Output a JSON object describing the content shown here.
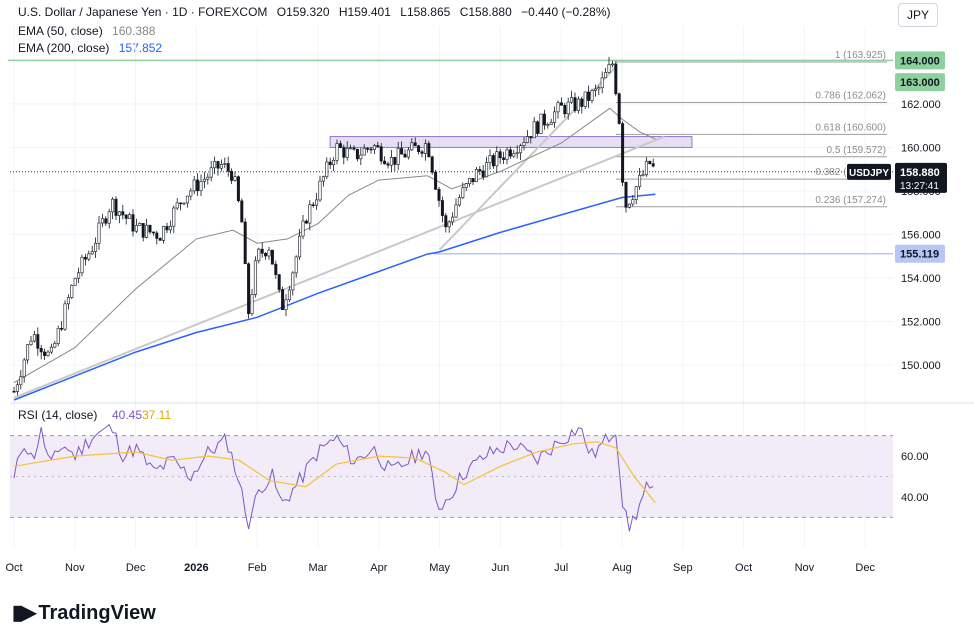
{
  "header": {
    "symbol": "U.S. Dollar / Japanese Yen · 1D · FOREXCOM",
    "open_label": "O",
    "open": "159.320",
    "high_label": "H",
    "high": "159.401",
    "low_label": "L",
    "low": "158.865",
    "close_label": "C",
    "close": "158.880",
    "change": "−0.440 (−0.28%)",
    "ema50_label": "EMA (50, close)",
    "ema50_value": "160.388",
    "ema200_label": "EMA (200, close)",
    "ema200_value": "157.852"
  },
  "currency_button": "JPY",
  "price_badge": {
    "symbol": "USDJPY",
    "price": "158.880",
    "countdown": "13:27:41"
  },
  "level_badges": [
    "164.000",
    "163.000",
    "155.119"
  ],
  "logo_text": "TradingView",
  "colors": {
    "up": "#131722",
    "down": "#131722",
    "ema200": "#2962ff",
    "ema50": "#888888",
    "rsi": "#7e57c2",
    "rsi_ma": "#f5c23a",
    "zone": "#d1c4e9",
    "level_green": "#8fd19e",
    "level_blue": "#b7c6f5"
  },
  "chart_data": [
    {
      "type": "candlestick",
      "x_ticks": [
        "Oct",
        "Nov",
        "Dec",
        "2026",
        "Feb",
        "Mar",
        "Apr",
        "May",
        "Jun",
        "Jul",
        "Aug",
        "Sep",
        "Oct",
        "Nov",
        "Dec"
      ],
      "y_ticks": [
        150.0,
        152.0,
        154.0,
        156.0,
        158.0,
        160.0,
        162.0
      ],
      "ylim": [
        148.4,
        164.2
      ],
      "last_price": 158.88,
      "key_points": [
        {
          "m": 0.0,
          "p": 148.8
        },
        {
          "m": 0.3,
          "p": 151.5
        },
        {
          "m": 0.6,
          "p": 150.3
        },
        {
          "m": 1.0,
          "p": 154.0
        },
        {
          "m": 1.3,
          "p": 155.5
        },
        {
          "m": 1.6,
          "p": 157.5
        },
        {
          "m": 2.0,
          "p": 156.3
        },
        {
          "m": 2.4,
          "p": 156.0
        },
        {
          "m": 2.8,
          "p": 157.8
        },
        {
          "m": 3.1,
          "p": 158.5
        },
        {
          "m": 3.4,
          "p": 159.2
        },
        {
          "m": 3.6,
          "p": 158.8
        },
        {
          "m": 3.75,
          "p": 156.5
        },
        {
          "m": 3.85,
          "p": 152.3
        },
        {
          "m": 4.0,
          "p": 155.0
        },
        {
          "m": 4.2,
          "p": 155.5
        },
        {
          "m": 4.4,
          "p": 152.6
        },
        {
          "m": 4.6,
          "p": 154.5
        },
        {
          "m": 4.8,
          "p": 156.8
        },
        {
          "m": 5.0,
          "p": 158.0
        },
        {
          "m": 5.3,
          "p": 160.0
        },
        {
          "m": 5.6,
          "p": 159.6
        },
        {
          "m": 5.9,
          "p": 160.1
        },
        {
          "m": 6.2,
          "p": 159.4
        },
        {
          "m": 6.5,
          "p": 159.8
        },
        {
          "m": 6.8,
          "p": 160.2
        },
        {
          "m": 7.0,
          "p": 157.5
        },
        {
          "m": 7.1,
          "p": 156.2
        },
        {
          "m": 7.3,
          "p": 157.6
        },
        {
          "m": 7.6,
          "p": 158.8
        },
        {
          "m": 8.0,
          "p": 159.6
        },
        {
          "m": 8.3,
          "p": 160.2
        },
        {
          "m": 8.6,
          "p": 161.0
        },
        {
          "m": 9.0,
          "p": 161.8
        },
        {
          "m": 9.3,
          "p": 162.0
        },
        {
          "m": 9.6,
          "p": 162.6
        },
        {
          "m": 9.75,
          "p": 163.4
        },
        {
          "m": 9.85,
          "p": 163.9
        },
        {
          "m": 9.95,
          "p": 161.5
        },
        {
          "m": 10.0,
          "p": 159.0
        },
        {
          "m": 10.05,
          "p": 157.3
        },
        {
          "m": 10.15,
          "p": 157.8
        },
        {
          "m": 10.3,
          "p": 158.5
        },
        {
          "m": 10.45,
          "p": 159.3
        },
        {
          "m": 10.55,
          "p": 158.88
        }
      ],
      "ema200_points": [
        {
          "m": 0.0,
          "p": 148.4
        },
        {
          "m": 1.0,
          "p": 149.5
        },
        {
          "m": 2.0,
          "p": 150.6
        },
        {
          "m": 3.0,
          "p": 151.5
        },
        {
          "m": 4.0,
          "p": 152.2
        },
        {
          "m": 5.0,
          "p": 153.3
        },
        {
          "m": 6.0,
          "p": 154.3
        },
        {
          "m": 6.8,
          "p": 155.1
        },
        {
          "m": 7.0,
          "p": 155.2
        },
        {
          "m": 8.0,
          "p": 156.1
        },
        {
          "m": 9.0,
          "p": 156.9
        },
        {
          "m": 10.0,
          "p": 157.7
        },
        {
          "m": 10.55,
          "p": 157.852
        }
      ],
      "ema50_points": [
        {
          "m": 0.0,
          "p": 149.2
        },
        {
          "m": 1.0,
          "p": 150.8
        },
        {
          "m": 2.0,
          "p": 153.5
        },
        {
          "m": 3.0,
          "p": 155.8
        },
        {
          "m": 3.6,
          "p": 156.2
        },
        {
          "m": 4.0,
          "p": 155.6
        },
        {
          "m": 4.5,
          "p": 155.8
        },
        {
          "m": 5.0,
          "p": 156.5
        },
        {
          "m": 5.5,
          "p": 157.8
        },
        {
          "m": 6.0,
          "p": 158.5
        },
        {
          "m": 6.8,
          "p": 158.7
        },
        {
          "m": 7.2,
          "p": 158.1
        },
        {
          "m": 8.0,
          "p": 158.9
        },
        {
          "m": 9.0,
          "p": 160.2
        },
        {
          "m": 9.8,
          "p": 161.8
        },
        {
          "m": 10.0,
          "p": 161.3
        },
        {
          "m": 10.3,
          "p": 160.7
        },
        {
          "m": 10.55,
          "p": 160.388
        }
      ],
      "trendlines": [
        {
          "from": {
            "m": 0.0,
            "p": 148.5
          },
          "to": {
            "m": 10.7,
            "p": 160.5
          }
        },
        {
          "from": {
            "m": 7.0,
            "p": 155.3
          },
          "to": {
            "m": 9.9,
            "p": 163.7
          }
        }
      ],
      "resistance_zone": {
        "from_m": 5.2,
        "to_m": 11.15,
        "p_low": 160.0,
        "p_high": 160.5
      },
      "horizontal_levels": [
        {
          "price": 164.0,
          "from_m": -0.1,
          "style": "green"
        },
        {
          "price": 155.119,
          "from_m": 6.9,
          "style": "blue"
        }
      ],
      "fibonacci": {
        "start_m": 9.9,
        "levels": [
          {
            "label": "1 (163.925)",
            "price": 163.925
          },
          {
            "label": "0.786 (162.062)",
            "price": 162.062
          },
          {
            "label": "0.618 (160.600)",
            "price": 160.6
          },
          {
            "label": "0.5 (159.572)",
            "price": 159.572
          },
          {
            "label": "0.382 (158.544)",
            "price": 158.544
          },
          {
            "label": "0.236 (157.274)",
            "price": 157.274
          }
        ]
      }
    },
    {
      "type": "line",
      "title": "RSI (14, close)",
      "series": [
        {
          "name": "RSI",
          "value": 40.45
        },
        {
          "name": "RSI-based MA",
          "value": 37.11
        }
      ],
      "y_ticks": [
        40.0,
        60.0
      ],
      "ylim": [
        15,
        85
      ],
      "bands": [
        30,
        50,
        70
      ],
      "rsi_points": [
        {
          "m": 0.0,
          "v": 48
        },
        {
          "m": 0.15,
          "v": 68
        },
        {
          "m": 0.3,
          "v": 58
        },
        {
          "m": 0.45,
          "v": 72
        },
        {
          "m": 0.6,
          "v": 55
        },
        {
          "m": 0.8,
          "v": 66
        },
        {
          "m": 1.0,
          "v": 60
        },
        {
          "m": 1.3,
          "v": 70
        },
        {
          "m": 1.6,
          "v": 74
        },
        {
          "m": 1.8,
          "v": 60
        },
        {
          "m": 2.0,
          "v": 64
        },
        {
          "m": 2.3,
          "v": 52
        },
        {
          "m": 2.6,
          "v": 58
        },
        {
          "m": 2.9,
          "v": 50
        },
        {
          "m": 3.2,
          "v": 62
        },
        {
          "m": 3.5,
          "v": 68
        },
        {
          "m": 3.7,
          "v": 48
        },
        {
          "m": 3.85,
          "v": 27
        },
        {
          "m": 4.05,
          "v": 45
        },
        {
          "m": 4.25,
          "v": 50
        },
        {
          "m": 4.4,
          "v": 36
        },
        {
          "m": 4.7,
          "v": 48
        },
        {
          "m": 5.0,
          "v": 62
        },
        {
          "m": 5.3,
          "v": 69
        },
        {
          "m": 5.6,
          "v": 57
        },
        {
          "m": 5.9,
          "v": 64
        },
        {
          "m": 6.2,
          "v": 52
        },
        {
          "m": 6.5,
          "v": 58
        },
        {
          "m": 6.8,
          "v": 64
        },
        {
          "m": 6.95,
          "v": 34
        },
        {
          "m": 7.15,
          "v": 40
        },
        {
          "m": 7.4,
          "v": 52
        },
        {
          "m": 7.8,
          "v": 61
        },
        {
          "m": 8.2,
          "v": 66
        },
        {
          "m": 8.6,
          "v": 58
        },
        {
          "m": 9.0,
          "v": 68
        },
        {
          "m": 9.3,
          "v": 74
        },
        {
          "m": 9.5,
          "v": 60
        },
        {
          "m": 9.75,
          "v": 68
        },
        {
          "m": 9.9,
          "v": 74
        },
        {
          "m": 10.0,
          "v": 40
        },
        {
          "m": 10.1,
          "v": 24
        },
        {
          "m": 10.25,
          "v": 33
        },
        {
          "m": 10.4,
          "v": 44
        },
        {
          "m": 10.55,
          "v": 40.45
        }
      ],
      "ma_points": [
        {
          "m": 0.0,
          "v": 55
        },
        {
          "m": 1.0,
          "v": 60
        },
        {
          "m": 2.0,
          "v": 62
        },
        {
          "m": 2.6,
          "v": 58
        },
        {
          "m": 3.2,
          "v": 60
        },
        {
          "m": 3.7,
          "v": 58
        },
        {
          "m": 4.2,
          "v": 48
        },
        {
          "m": 4.8,
          "v": 45
        },
        {
          "m": 5.3,
          "v": 56
        },
        {
          "m": 6.0,
          "v": 60
        },
        {
          "m": 6.6,
          "v": 59
        },
        {
          "m": 7.1,
          "v": 52
        },
        {
          "m": 7.4,
          "v": 46
        },
        {
          "m": 8.0,
          "v": 55
        },
        {
          "m": 8.6,
          "v": 62
        },
        {
          "m": 9.2,
          "v": 66
        },
        {
          "m": 9.6,
          "v": 67
        },
        {
          "m": 9.9,
          "v": 64
        },
        {
          "m": 10.2,
          "v": 50
        },
        {
          "m": 10.55,
          "v": 37.11
        }
      ]
    }
  ]
}
